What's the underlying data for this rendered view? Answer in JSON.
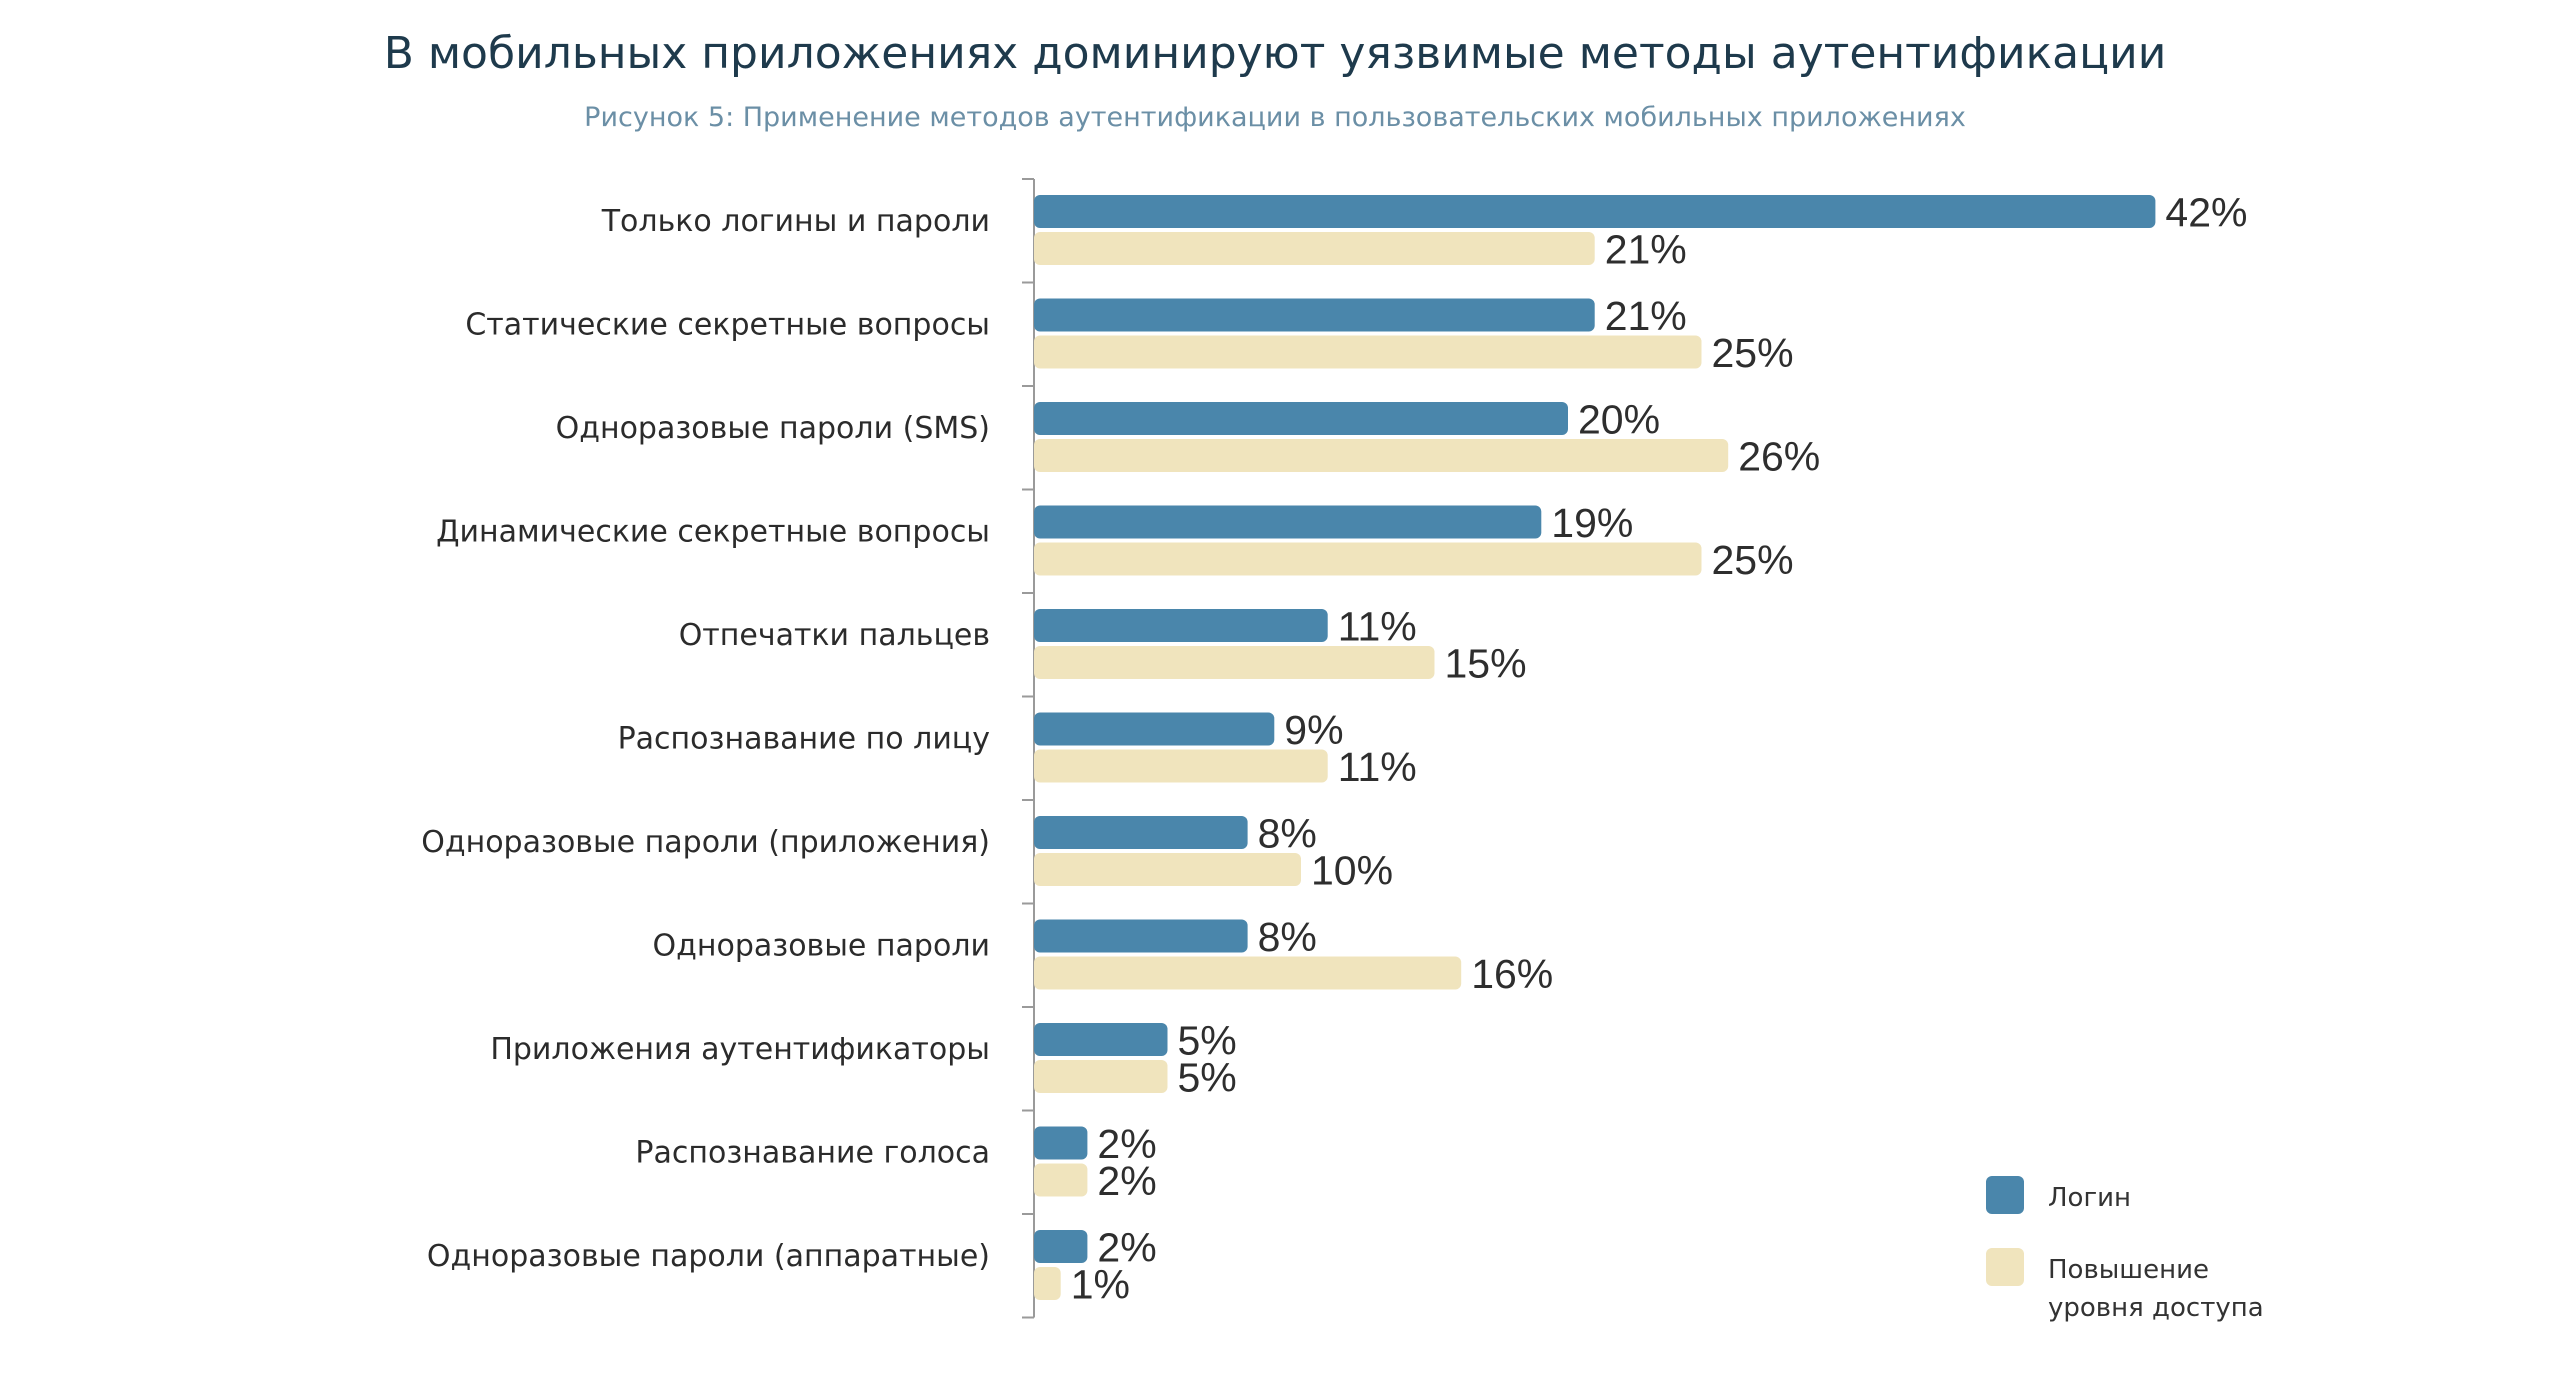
{
  "title": "В мобильных приложениях доминируют уязвимые методы аутентификации",
  "subtitle": "Рисунок 5: Применение методов аутентификации в пользовательских мобильных приложениях",
  "colors": {
    "login": "#4a86ab",
    "elevation": "#f0e4bd",
    "axis": "#9a9a9a"
  },
  "chart_data": {
    "type": "bar",
    "orientation": "horizontal",
    "categories": [
      "Только логины и пароли",
      "Статические секретные вопросы",
      "Одноразовые пароли (SMS)",
      "Динамические секретные вопросы",
      "Отпечатки пальцев",
      "Распознавание по лицу",
      "Одноразовые пароли (приложения)",
      "Одноразовые пароли",
      "Приложения аутентификаторы",
      "Распознавание голоса",
      "Одноразовые пароли (аппаратные)"
    ],
    "series": [
      {
        "name": "Логин",
        "values": [
          42,
          21,
          20,
          19,
          11,
          9,
          8,
          8,
          5,
          2,
          2
        ],
        "labels": [
          "42%",
          "21%",
          "20%",
          "19%",
          "11%",
          "9%",
          "8%",
          "8%",
          "5%",
          "2%",
          "2%"
        ],
        "color": "#4a86ab"
      },
      {
        "name": "Повышение уровня доступа",
        "values": [
          21,
          25,
          26,
          25,
          15,
          11,
          10,
          16,
          5,
          2,
          1
        ],
        "labels": [
          "21%",
          "25%",
          "26%",
          "25%",
          "15%",
          "11%",
          "10%",
          "16%",
          "5%",
          "2%",
          "1%"
        ],
        "color": "#f0e4bd"
      }
    ],
    "legend": {
      "position": "bottom-right",
      "items": [
        {
          "lines": [
            "Логин"
          ],
          "color": "#4a86ab"
        },
        {
          "lines": [
            "Повышение",
            "уровня доступа"
          ],
          "color": "#f0e4bd"
        }
      ]
    },
    "data_labels": true,
    "grid": false
  }
}
